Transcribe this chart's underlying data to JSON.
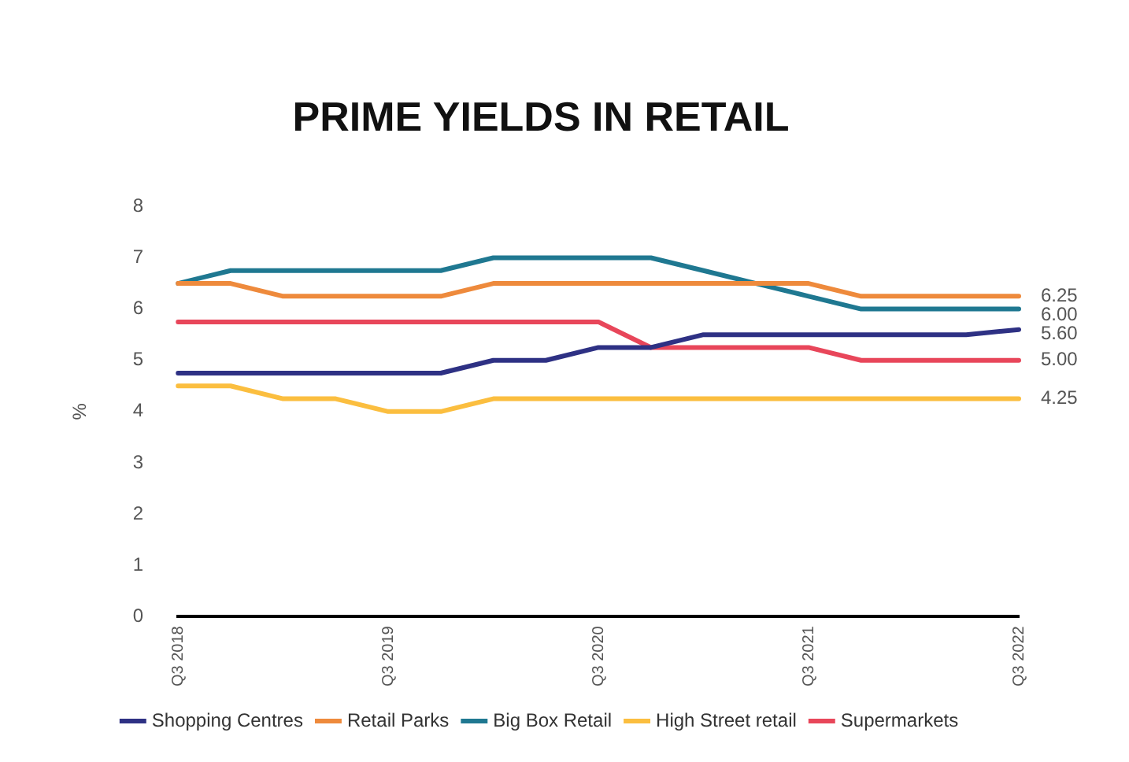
{
  "chart_data": {
    "type": "line",
    "title": "PRIME YIELDS IN RETAIL",
    "ylabel": "%",
    "categories": [
      "Q3 2018",
      null,
      null,
      null,
      "Q3 2019",
      null,
      null,
      null,
      "Q3 2020",
      null,
      null,
      null,
      "Q3 2021",
      null,
      null,
      null,
      "Q3 2022"
    ],
    "ylim": [
      0,
      8
    ],
    "yticks": [
      0,
      1,
      2,
      3,
      4,
      5,
      6,
      7,
      8
    ],
    "grid": false,
    "legend": "bottom",
    "marker": "none",
    "line_style": "solid",
    "series": [
      {
        "name": "Shopping Centres",
        "color": "#2e3184",
        "values": [
          4.75,
          4.75,
          4.75,
          4.75,
          4.75,
          4.75,
          5.0,
          5.0,
          5.25,
          5.25,
          5.5,
          5.5,
          5.5,
          5.5,
          5.5,
          5.5,
          5.6
        ],
        "value_labels": [
          null,
          null,
          null,
          null,
          null,
          null,
          null,
          null,
          null,
          null,
          null,
          null,
          null,
          null,
          null,
          null,
          "5.60"
        ]
      },
      {
        "name": "Retail Parks",
        "color": "#ee8a3c",
        "values": [
          6.5,
          6.5,
          6.25,
          6.25,
          6.25,
          6.25,
          6.5,
          6.5,
          6.5,
          6.5,
          6.5,
          6.5,
          6.5,
          6.25,
          6.25,
          6.25,
          6.25
        ],
        "value_labels": [
          null,
          null,
          null,
          null,
          null,
          null,
          null,
          null,
          null,
          null,
          null,
          null,
          null,
          null,
          null,
          null,
          "6.25"
        ]
      },
      {
        "name": "Big Box Retail",
        "color": "#1f7891",
        "values": [
          6.5,
          6.75,
          6.75,
          6.75,
          6.75,
          6.75,
          7.0,
          7.0,
          7.0,
          7.0,
          6.75,
          6.5,
          6.25,
          6.0,
          6.0,
          6.0,
          6.0
        ],
        "value_labels": [
          null,
          null,
          null,
          null,
          null,
          null,
          null,
          null,
          null,
          null,
          null,
          null,
          null,
          null,
          null,
          null,
          "6.00"
        ]
      },
      {
        "name": "High Street retail",
        "color": "#fbbe3f",
        "values": [
          4.5,
          4.5,
          4.25,
          4.25,
          4.0,
          4.0,
          4.25,
          4.25,
          4.25,
          4.25,
          4.25,
          4.25,
          4.25,
          4.25,
          4.25,
          4.25,
          4.25
        ],
        "value_labels": [
          null,
          null,
          null,
          null,
          null,
          null,
          null,
          null,
          null,
          null,
          null,
          null,
          null,
          null,
          null,
          null,
          "4.25"
        ]
      },
      {
        "name": "Supermarkets",
        "color": "#e8465a",
        "values": [
          5.75,
          5.75,
          5.75,
          5.75,
          5.75,
          5.75,
          5.75,
          5.75,
          5.75,
          5.25,
          5.25,
          5.25,
          5.25,
          5.0,
          5.0,
          5.0,
          5.0
        ],
        "value_labels": [
          null,
          null,
          null,
          null,
          null,
          null,
          null,
          null,
          null,
          null,
          null,
          null,
          null,
          null,
          null,
          null,
          "5.00"
        ]
      }
    ]
  }
}
